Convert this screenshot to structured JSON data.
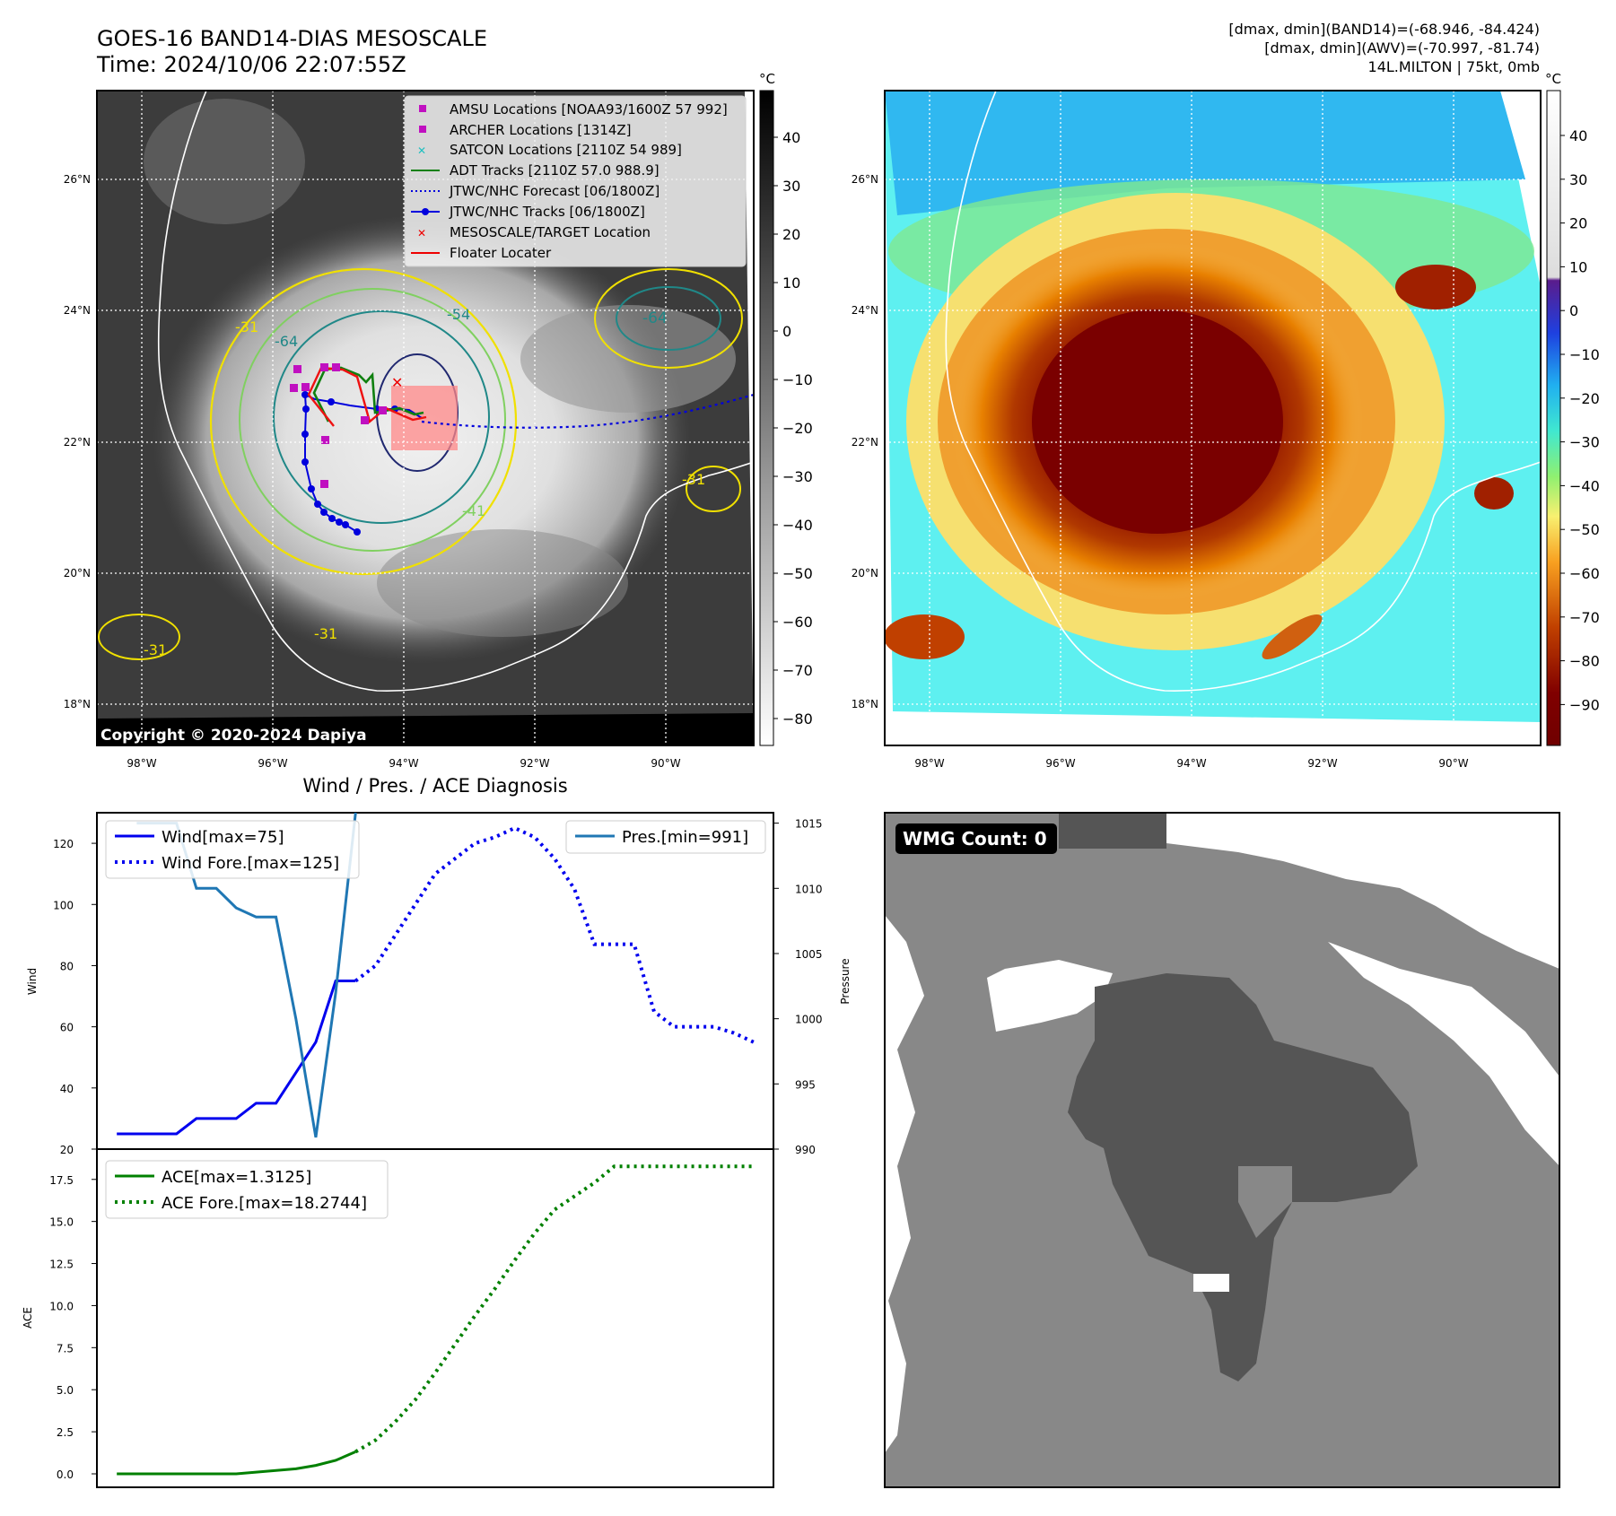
{
  "header": {
    "title_line1": "GOES-16 BAND14-DIAS MESOSCALE",
    "title_line2": "Time: 2024/10/06 22:07:55Z",
    "info_line1": "[dmax, dmin](BAND14)=(-68.946, -84.424)",
    "info_line2": "[dmax, dmin](AWV)=(-70.997, -81.74)",
    "info_line3": "14L.MILTON | 75kt, 0mb"
  },
  "maps": {
    "lat_labels": [
      "26°N",
      "24°N",
      "22°N",
      "20°N",
      "18°N"
    ],
    "lon_labels": [
      "98°W",
      "96°W",
      "94°W",
      "92°W",
      "90°W"
    ],
    "copyright": "Copyright © 2020-2024 Dapiya",
    "contour_labels": [
      "-64",
      "-54",
      "-31",
      "-64",
      "-31",
      "-31",
      "-31",
      "-41"
    ],
    "legend": [
      {
        "label": "AMSU Locations [NOAA93/1600Z 57 992]",
        "marker": "square",
        "color": "#c010c0"
      },
      {
        "label": "ARCHER Locations [1314Z]",
        "marker": "square",
        "color": "#c010c0"
      },
      {
        "label": "SATCON Locations [2110Z 54 989]",
        "marker": "x",
        "color": "#20c0c0"
      },
      {
        "label": "ADT Tracks [2110Z 57.0 988.9]",
        "marker": "line",
        "color": "#108010"
      },
      {
        "label": "JTWC/NHC Forecast [06/1800Z]",
        "marker": "dotted",
        "color": "#0000dd"
      },
      {
        "label": "JTWC/NHC Tracks [06/1800Z]",
        "marker": "line-dot",
        "color": "#0000dd"
      },
      {
        "label": "MESOSCALE/TARGET Location",
        "marker": "x",
        "color": "#ee0000"
      },
      {
        "label": "Floater Locater",
        "marker": "line",
        "color": "#ee0000"
      }
    ],
    "colorbar_left": {
      "unit": "°C",
      "ticks": [
        "40",
        "30",
        "20",
        "10",
        "0",
        "−10",
        "−20",
        "−30",
        "−40",
        "−50",
        "−60",
        "−70",
        "−80"
      ]
    },
    "colorbar_right": {
      "unit": "°C",
      "ticks": [
        "40",
        "30",
        "20",
        "10",
        "0",
        "−10",
        "−20",
        "−30",
        "−40",
        "−50",
        "−60",
        "−70",
        "−80",
        "−90"
      ]
    }
  },
  "chart_data": [
    {
      "type": "line",
      "title": "Wind / Pres. / ACE Diagnosis",
      "xlabel": "",
      "ylabel": "Wind",
      "ylim": [
        20,
        130
      ],
      "yticks": [
        20,
        40,
        60,
        80,
        100,
        120
      ],
      "y2label": "Pressure",
      "y2lim": [
        990,
        1015.8
      ],
      "y2ticks": [
        990,
        995,
        1000,
        1005,
        1010,
        1015
      ],
      "series": [
        {
          "name": "Wind[max=75]",
          "axis": "left",
          "style": "solid",
          "color": "#0000ee",
          "x": [
            0,
            1,
            2,
            3,
            4,
            5,
            6,
            7,
            8,
            9,
            10,
            11,
            12
          ],
          "values": [
            25,
            25,
            25,
            25,
            30,
            30,
            30,
            35,
            35,
            45,
            55,
            75,
            75
          ]
        },
        {
          "name": "Wind Fore.[max=125]",
          "axis": "left",
          "style": "dotted",
          "color": "#0000ee",
          "x": [
            12,
            13,
            14,
            15,
            16,
            17,
            18,
            19,
            20,
            21,
            22,
            23,
            24,
            25,
            26,
            27,
            28,
            29,
            30,
            31,
            32
          ],
          "values": [
            75,
            80,
            90,
            100,
            110,
            115,
            120,
            122,
            125,
            122,
            115,
            105,
            87,
            87,
            87,
            65,
            60,
            60,
            60,
            58,
            55
          ]
        },
        {
          "name": "Pres.[min=991]",
          "axis": "right",
          "style": "solid",
          "color": "#1f77b4",
          "x": [
            1,
            2,
            3,
            4,
            5,
            6,
            7,
            8,
            9,
            10,
            11,
            12
          ],
          "values": [
            1015,
            1015,
            1015,
            1010,
            1010,
            1008.5,
            1007.8,
            1007.8,
            1000,
            990.9,
            1002,
            1015.8
          ]
        }
      ]
    },
    {
      "type": "line",
      "xlabel": "",
      "ylabel": "ACE",
      "ylim": [
        -0.8,
        19.3
      ],
      "yticks": [
        "0.0",
        "2.5",
        "5.0",
        "7.5",
        "10.0",
        "12.5",
        "15.0",
        "17.5"
      ],
      "series": [
        {
          "name": "ACE[max=1.3125]",
          "style": "solid",
          "color": "#008000",
          "x": [
            0,
            1,
            2,
            3,
            4,
            5,
            6,
            7,
            8,
            9,
            10,
            11,
            12
          ],
          "values": [
            0,
            0,
            0,
            0,
            0,
            0,
            0,
            0.1,
            0.2,
            0.3,
            0.5,
            0.8,
            1.3125
          ]
        },
        {
          "name": "ACE Fore.[max=18.2744]",
          "style": "dotted",
          "color": "#008000",
          "x": [
            12,
            13,
            14,
            15,
            16,
            17,
            18,
            19,
            20,
            21,
            22,
            23,
            24,
            25,
            26,
            27,
            28,
            29,
            30,
            31,
            32
          ],
          "values": [
            1.3125,
            2,
            3.1,
            4.4,
            6,
            7.7,
            9.4,
            11,
            12.7,
            14.3,
            15.7,
            16.5,
            17.3,
            18.2744,
            18.2744,
            18.2744,
            18.2744,
            18.2744,
            18.2744,
            18.2744,
            18.2744
          ]
        }
      ]
    }
  ],
  "wmg": {
    "label": "WMG Count: 0"
  },
  "colors": {
    "wind": "#0000ee",
    "pressure": "#1f77b4",
    "ace": "#008000",
    "eye_dark": "#7a0000",
    "bg_cyan": "#5ef0f0"
  }
}
